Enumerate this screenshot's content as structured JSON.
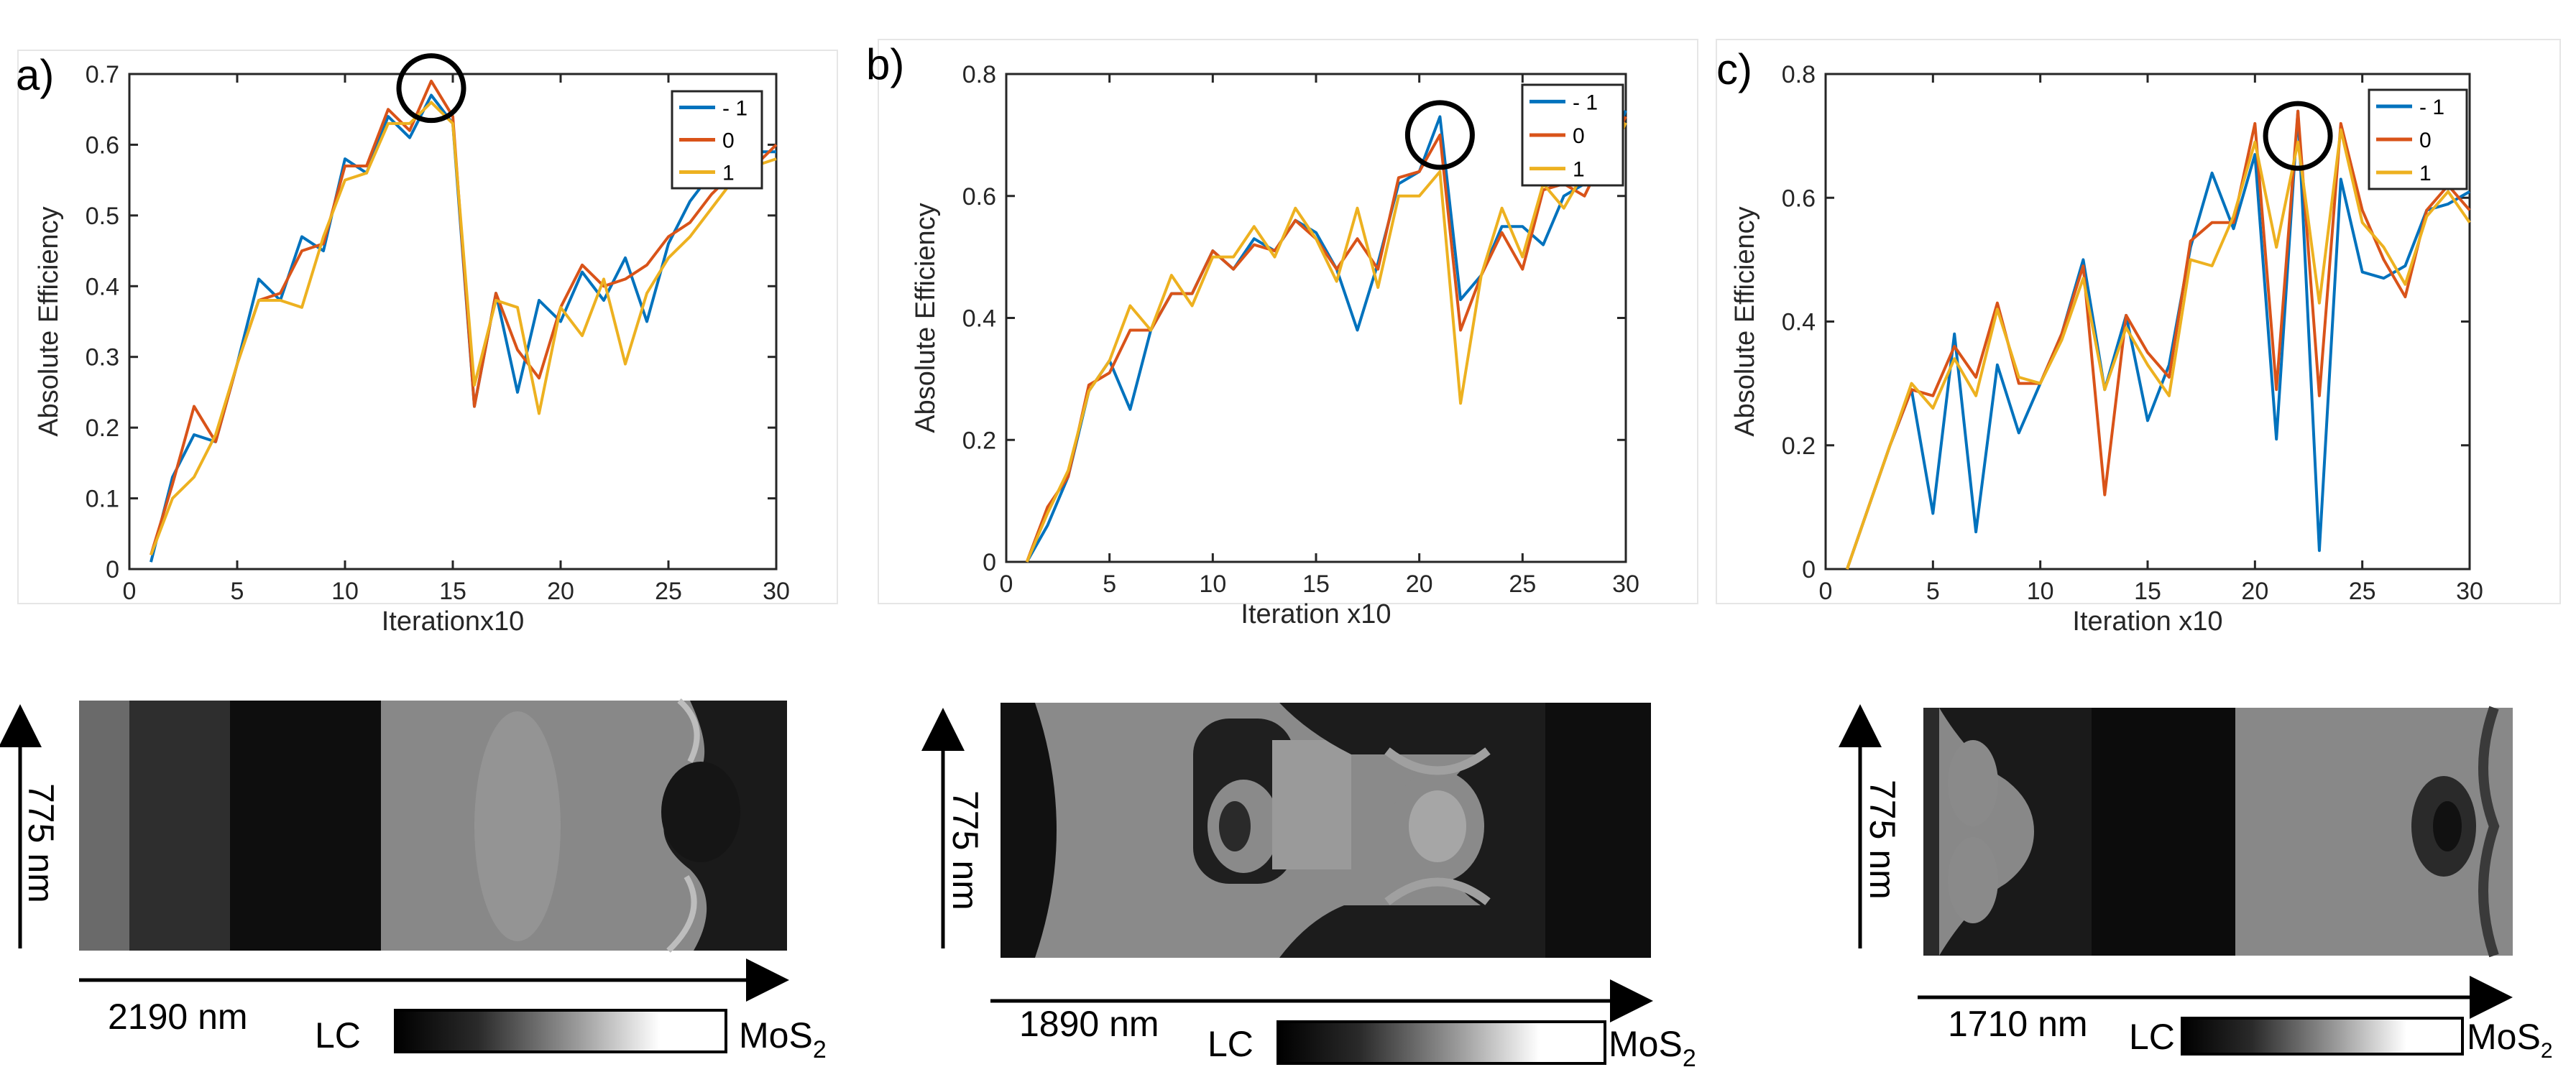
{
  "chart_data": [
    {
      "panel": "a)",
      "type": "line",
      "xlabel": "Iterationx10",
      "ylabel": "Absolute Efficiency",
      "xlim": [
        0,
        30
      ],
      "ylim": [
        0,
        0.7
      ],
      "xticks": [
        0,
        5,
        10,
        15,
        20,
        25,
        30
      ],
      "yticks": [
        0,
        0.1,
        0.2,
        0.3,
        0.4,
        0.5,
        0.6,
        0.7
      ],
      "legend_position": "top-right",
      "highlight": {
        "x": 14,
        "y": 0.68
      },
      "x": [
        1,
        2,
        3,
        4,
        5,
        6,
        7,
        8,
        9,
        10,
        11,
        12,
        13,
        14,
        15,
        16,
        17,
        18,
        19,
        20,
        21,
        22,
        23,
        24,
        25,
        26,
        27,
        28,
        29,
        30
      ],
      "series": [
        {
          "name": "- 1",
          "color": "#0072BD",
          "values": [
            0.01,
            0.13,
            0.19,
            0.18,
            0.29,
            0.41,
            0.38,
            0.47,
            0.45,
            0.58,
            0.56,
            0.64,
            0.61,
            0.67,
            0.63,
            0.23,
            0.39,
            0.25,
            0.38,
            0.35,
            0.42,
            0.38,
            0.44,
            0.35,
            0.46,
            0.52,
            0.56,
            0.56,
            0.59,
            0.59
          ]
        },
        {
          "name": "0",
          "color": "#D95319",
          "values": [
            0.02,
            0.12,
            0.23,
            0.18,
            0.29,
            0.38,
            0.39,
            0.45,
            0.46,
            0.57,
            0.57,
            0.65,
            0.62,
            0.69,
            0.64,
            0.23,
            0.39,
            0.31,
            0.27,
            0.37,
            0.43,
            0.4,
            0.41,
            0.43,
            0.47,
            0.49,
            0.53,
            0.56,
            0.57,
            0.6
          ]
        },
        {
          "name": "1",
          "color": "#EDB120",
          "values": [
            0.02,
            0.1,
            0.13,
            0.19,
            0.29,
            0.38,
            0.38,
            0.37,
            0.47,
            0.55,
            0.56,
            0.63,
            0.63,
            0.66,
            0.63,
            0.26,
            0.38,
            0.37,
            0.22,
            0.37,
            0.33,
            0.41,
            0.29,
            0.39,
            0.44,
            0.47,
            0.51,
            0.55,
            0.57,
            0.58
          ]
        }
      ],
      "domain_bar": {
        "width_label": "2190 nm",
        "height_label": "775 nm"
      }
    },
    {
      "panel": "b)",
      "type": "line",
      "xlabel": "Iteration x10",
      "ylabel": "Absolute Efficiency",
      "xlim": [
        0,
        30
      ],
      "ylim": [
        0,
        0.8
      ],
      "xticks": [
        0,
        5,
        10,
        15,
        20,
        25,
        30
      ],
      "yticks": [
        0,
        0.2,
        0.4,
        0.6,
        0.8
      ],
      "legend_position": "top-right",
      "highlight": {
        "x": 21,
        "y": 0.7
      },
      "x": [
        1,
        2,
        3,
        4,
        5,
        6,
        7,
        8,
        9,
        10,
        11,
        12,
        13,
        14,
        15,
        16,
        17,
        18,
        19,
        20,
        21,
        22,
        23,
        24,
        25,
        26,
        27,
        28,
        29,
        30
      ],
      "series": [
        {
          "name": "- 1",
          "color": "#0072BD",
          "values": [
            0.0,
            0.06,
            0.14,
            0.28,
            0.33,
            0.25,
            0.38,
            0.44,
            0.44,
            0.51,
            0.48,
            0.53,
            0.51,
            0.56,
            0.54,
            0.48,
            0.38,
            0.49,
            0.62,
            0.64,
            0.73,
            0.43,
            0.47,
            0.55,
            0.55,
            0.52,
            0.6,
            0.62,
            0.66,
            0.74
          ]
        },
        {
          "name": "0",
          "color": "#D95319",
          "values": [
            0.0,
            0.09,
            0.14,
            0.29,
            0.31,
            0.38,
            0.38,
            0.44,
            0.44,
            0.51,
            0.48,
            0.52,
            0.51,
            0.56,
            0.53,
            0.48,
            0.53,
            0.48,
            0.63,
            0.64,
            0.7,
            0.38,
            0.47,
            0.54,
            0.48,
            0.61,
            0.62,
            0.6,
            0.67,
            0.73
          ]
        },
        {
          "name": "1",
          "color": "#EDB120",
          "values": [
            0.0,
            0.08,
            0.15,
            0.28,
            0.33,
            0.42,
            0.38,
            0.47,
            0.42,
            0.5,
            0.5,
            0.55,
            0.5,
            0.58,
            0.53,
            0.46,
            0.58,
            0.45,
            0.6,
            0.6,
            0.64,
            0.26,
            0.47,
            0.58,
            0.5,
            0.62,
            0.58,
            0.64,
            0.65,
            0.72
          ]
        }
      ],
      "domain_bar": {
        "width_label": "1890 nm",
        "height_label": "775 nm"
      }
    },
    {
      "panel": "c)",
      "type": "line",
      "xlabel": "Iteration x10",
      "ylabel": "Absolute Efficiency",
      "xlim": [
        0,
        30
      ],
      "ylim": [
        0,
        0.8
      ],
      "xticks": [
        0,
        5,
        10,
        15,
        20,
        25,
        30
      ],
      "yticks": [
        0,
        0.2,
        0.4,
        0.6,
        0.8
      ],
      "legend_position": "top-right",
      "highlight": {
        "x": 22,
        "y": 0.7
      },
      "x": [
        1,
        2,
        3,
        4,
        5,
        6,
        7,
        8,
        9,
        10,
        11,
        12,
        13,
        14,
        15,
        16,
        17,
        18,
        19,
        20,
        21,
        22,
        23,
        24,
        25,
        26,
        27,
        28,
        29,
        30
      ],
      "series": [
        {
          "name": "- 1",
          "color": "#0072BD",
          "values": [
            0.0,
            0.1,
            0.2,
            0.29,
            0.09,
            0.38,
            0.06,
            0.33,
            0.22,
            0.3,
            0.38,
            0.5,
            0.29,
            0.41,
            0.24,
            0.33,
            0.52,
            0.64,
            0.55,
            0.67,
            0.21,
            0.74,
            0.03,
            0.63,
            0.48,
            0.47,
            0.49,
            0.58,
            0.59,
            0.61
          ]
        },
        {
          "name": "0",
          "color": "#D95319",
          "values": [
            0.0,
            0.1,
            0.2,
            0.29,
            0.28,
            0.36,
            0.31,
            0.43,
            0.3,
            0.3,
            0.38,
            0.49,
            0.12,
            0.41,
            0.35,
            0.31,
            0.53,
            0.56,
            0.56,
            0.72,
            0.29,
            0.74,
            0.28,
            0.72,
            0.58,
            0.5,
            0.44,
            0.58,
            0.62,
            0.58
          ]
        },
        {
          "name": "1",
          "color": "#EDB120",
          "values": [
            0.0,
            0.1,
            0.2,
            0.3,
            0.26,
            0.34,
            0.28,
            0.42,
            0.31,
            0.3,
            0.37,
            0.47,
            0.29,
            0.39,
            0.33,
            0.28,
            0.5,
            0.49,
            0.57,
            0.69,
            0.52,
            0.69,
            0.43,
            0.71,
            0.56,
            0.52,
            0.46,
            0.57,
            0.61,
            0.56
          ]
        }
      ],
      "domain_bar": {
        "width_label": "1710 nm",
        "height_label": "775 nm"
      }
    }
  ],
  "colorbar": {
    "left_label": "LC",
    "right_label": "MoS",
    "right_subscript": "2"
  }
}
